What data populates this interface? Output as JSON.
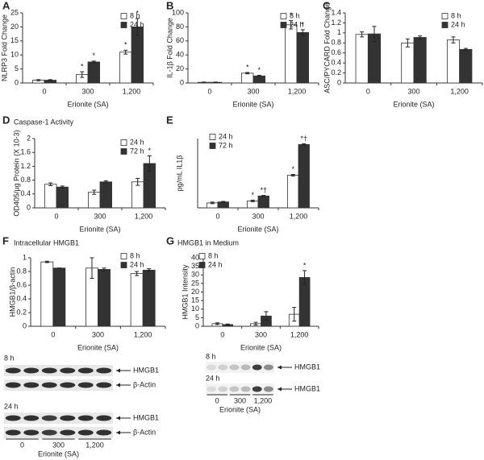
{
  "chart_data": [
    {
      "type": "bar",
      "label": "A",
      "ylabel": "NLRP3 Fold Change",
      "xlabel": "Erionite (SA)",
      "categories": [
        "0",
        "300",
        "1,200"
      ],
      "series": [
        {
          "name": "8 h",
          "color": "#ffffff",
          "values": [
            1,
            3,
            11
          ],
          "errors": [
            0.2,
            1,
            0.7
          ],
          "annotations": [
            null,
            "*",
            "*"
          ]
        },
        {
          "name": "24 h",
          "color": "#333333",
          "values": [
            1,
            7.5,
            20
          ],
          "errors": [
            0.2,
            0.3,
            3
          ],
          "annotations": [
            null,
            "*",
            "*"
          ]
        }
      ],
      "ylim": [
        0,
        25
      ],
      "yticks": [
        0,
        5,
        10,
        15,
        20,
        25
      ]
    },
    {
      "type": "bar",
      "label": "B",
      "ylabel": "IL-1β Fold Change",
      "xlabel": "Erionite (SA)",
      "categories": [
        "0",
        "300",
        "1,200"
      ],
      "series": [
        {
          "name": "8 h",
          "color": "#ffffff",
          "values": [
            1,
            14,
            83
          ],
          "errors": [
            0.3,
            1,
            6
          ],
          "annotations": [
            null,
            "*",
            "*"
          ]
        },
        {
          "name": "24 h",
          "color": "#333333",
          "values": [
            1,
            10,
            72
          ],
          "errors": [
            0.3,
            1,
            4
          ],
          "annotations": [
            null,
            "*",
            "*"
          ]
        }
      ],
      "ylim": [
        0,
        100
      ],
      "yticks": [
        0,
        20,
        40,
        60,
        80,
        100
      ]
    },
    {
      "type": "bar",
      "label": "C",
      "ylabel": "ASC/PYCARD Fold Change",
      "xlabel": "Erionite (SA)",
      "categories": [
        "0",
        "300",
        "1,200"
      ],
      "series": [
        {
          "name": "8 h",
          "color": "#ffffff",
          "values": [
            0.97,
            0.8,
            0.86
          ],
          "errors": [
            0.05,
            0.08,
            0.06
          ]
        },
        {
          "name": "24 h",
          "color": "#333333",
          "values": [
            0.98,
            0.91,
            0.67
          ],
          "errors": [
            0.15,
            0.03,
            0.02
          ]
        }
      ],
      "ylim": [
        0,
        1.4
      ],
      "yticks": [
        0,
        0.2,
        0.4,
        0.6,
        0.8,
        1,
        1.2,
        1.4
      ]
    },
    {
      "type": "bar",
      "label": "D",
      "title": "Caspase-1 Activity",
      "ylabel": "OD405/µg Protein (X 10-3)",
      "xlabel": "Erionite (SA)",
      "categories": [
        "0",
        "300",
        "1,200"
      ],
      "series": [
        {
          "name": "24 h",
          "color": "#ffffff",
          "values": [
            0.68,
            0.45,
            0.75
          ],
          "errors": [
            0.04,
            0.06,
            0.1
          ]
        },
        {
          "name": "72 h",
          "color": "#333333",
          "values": [
            0.6,
            0.75,
            1.28
          ],
          "errors": [
            0.03,
            0.03,
            0.22
          ],
          "annotations": [
            null,
            null,
            "*"
          ]
        }
      ],
      "ylim": [
        0,
        2
      ],
      "yticks": [
        0,
        0.4,
        0.8,
        1.2,
        1.6,
        2
      ]
    },
    {
      "type": "bar",
      "label": "E",
      "ylabel": "pg/mL IL1β",
      "xlabel": "Erionite (SA)",
      "categories": [
        "0",
        "300",
        "1,200"
      ],
      "series": [
        {
          "name": "24 h",
          "color": "#ffffff",
          "values": [
            0.5,
            0.7,
            3.3
          ],
          "errors": [
            0.08,
            0.08,
            0.08
          ],
          "annotations": [
            null,
            "*",
            "*"
          ]
        },
        {
          "name": "72 h",
          "color": "#333333",
          "values": [
            0.6,
            1.2,
            6.4
          ],
          "errors": [
            0.05,
            0.06,
            0.08
          ],
          "annotations": [
            null,
            "*†",
            "*†"
          ]
        }
      ],
      "ylim": [
        0,
        7
      ]
    },
    {
      "type": "bar",
      "label": "F",
      "title": "Intracellular HMGB1",
      "ylabel": "HMGB1/β-actin",
      "xlabel": "Erionite (SA)",
      "categories": [
        "0",
        "300",
        "1,200"
      ],
      "series": [
        {
          "name": "8 h",
          "color": "#ffffff",
          "values": [
            0.94,
            0.85,
            0.77
          ],
          "errors": [
            0.01,
            0.15,
            0.03
          ]
        },
        {
          "name": "24 h",
          "color": "#333333",
          "values": [
            0.85,
            0.83,
            0.82
          ],
          "errors": [
            0,
            0.02,
            0.02
          ]
        }
      ],
      "ylim": [
        0,
        1
      ],
      "yticks": [
        0,
        0.2,
        0.4,
        0.6,
        0.8,
        1
      ]
    },
    {
      "type": "bar",
      "label": "G",
      "title": "HMGB1 in Medium",
      "ylabel": "HMGB1 Intensity",
      "xlabel": "Erionite (SA)",
      "categories": [
        "0",
        "300",
        "1,200"
      ],
      "series": [
        {
          "name": "8 h",
          "color": "#ffffff",
          "values": [
            1.5,
            1.5,
            7
          ],
          "errors": [
            0.5,
            0.8,
            4
          ]
        },
        {
          "name": "24 h",
          "color": "#333333",
          "values": [
            1,
            6,
            28.5
          ],
          "errors": [
            0.3,
            2.5,
            4
          ],
          "annotations": [
            null,
            null,
            "*"
          ]
        }
      ],
      "ylim": [
        0,
        40
      ],
      "yticks": [
        0,
        5,
        10,
        15,
        20,
        25,
        30,
        35,
        40
      ]
    }
  ],
  "blots": [
    {
      "rows": [
        {
          "time": "8 h",
          "bands": [
            "HMGB1",
            "β-Actin"
          ]
        },
        {
          "time": "24 h",
          "bands": [
            "HMGB1",
            "β-Actin"
          ]
        }
      ],
      "lanes": [
        "0",
        "300",
        "1,200"
      ],
      "xlabel": "Erionite (SA)"
    },
    {
      "rows": [
        {
          "time": "8 h",
          "bands": [
            "HMGB1"
          ]
        },
        {
          "time": "24 h",
          "bands": [
            "HMGB1"
          ]
        }
      ],
      "lanes": [
        "0",
        "300",
        "1,200"
      ],
      "xlabel": "Erionite (SA)"
    }
  ]
}
